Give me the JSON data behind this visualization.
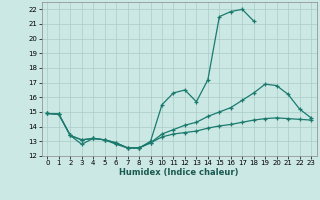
{
  "xlabel": "Humidex (Indice chaleur)",
  "bg_color": "#cce8e4",
  "grid_color": "#aaccc8",
  "line_color": "#1a7a6e",
  "xlim": [
    -0.5,
    23.5
  ],
  "ylim": [
    12,
    22.5
  ],
  "xticks": [
    0,
    1,
    2,
    3,
    4,
    5,
    6,
    7,
    8,
    9,
    10,
    11,
    12,
    13,
    14,
    15,
    16,
    17,
    18,
    19,
    20,
    21,
    22,
    23
  ],
  "yticks": [
    12,
    13,
    14,
    15,
    16,
    17,
    18,
    19,
    20,
    21,
    22
  ],
  "line1_x": [
    0,
    1,
    2,
    3,
    4,
    5,
    6,
    7,
    8,
    9,
    10,
    11,
    12,
    13,
    14,
    15,
    16,
    17,
    18
  ],
  "line1_y": [
    14.9,
    14.85,
    13.4,
    12.8,
    13.2,
    13.1,
    12.8,
    12.55,
    12.55,
    13.0,
    15.5,
    16.3,
    16.5,
    15.7,
    17.2,
    21.5,
    21.85,
    22.0,
    21.2
  ],
  "line2_x": [
    0,
    1,
    2,
    3,
    4,
    5,
    6,
    7,
    8,
    9,
    10,
    11,
    12,
    13,
    14,
    15,
    16,
    17,
    18,
    19,
    20,
    21,
    22,
    23
  ],
  "line2_y": [
    14.9,
    14.85,
    13.4,
    13.1,
    13.2,
    13.1,
    12.9,
    12.55,
    12.55,
    12.9,
    13.5,
    13.8,
    14.1,
    14.3,
    14.7,
    15.0,
    15.3,
    15.8,
    16.3,
    16.9,
    16.8,
    16.2,
    15.2,
    14.6
  ],
  "line3_x": [
    0,
    1,
    2,
    3,
    4,
    5,
    6,
    7,
    8,
    9,
    10,
    11,
    12,
    13,
    14,
    15,
    16,
    17,
    18,
    19,
    20,
    21,
    22,
    23
  ],
  "line3_y": [
    14.9,
    14.85,
    13.4,
    13.1,
    13.2,
    13.1,
    12.9,
    12.55,
    12.55,
    12.9,
    13.3,
    13.5,
    13.6,
    13.7,
    13.9,
    14.05,
    14.15,
    14.3,
    14.45,
    14.55,
    14.6,
    14.55,
    14.5,
    14.45
  ]
}
